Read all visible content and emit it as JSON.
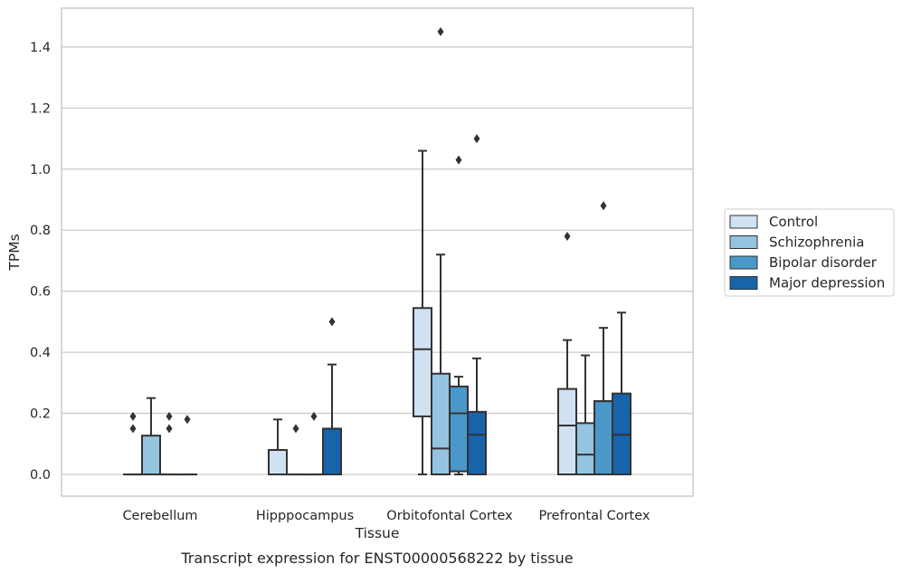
{
  "caption": "Transcript expression for ENST00000568222 by tissue",
  "chart_data": {
    "type": "box",
    "xlabel": "Tissue",
    "ylabel": "TPMs",
    "ylim": [
      -0.07,
      1.53
    ],
    "yticks": [
      0.0,
      0.2,
      0.4,
      0.6,
      0.8,
      1.0,
      1.2,
      1.4
    ],
    "ytick_labels": [
      "0.0",
      "0.2",
      "0.4",
      "0.6",
      "0.8",
      "1.0",
      "1.2",
      "1.4"
    ],
    "grid": "horizontal",
    "legend_position": "right",
    "categories": [
      "Cerebellum",
      "Hipppocampus",
      "Orbitofontal Cortex",
      "Prefrontal Cortex"
    ],
    "series": [
      {
        "name": "Control",
        "color": "#d0e1f2",
        "boxes": [
          {
            "q1": 0,
            "median": 0,
            "q3": 0,
            "whislo": 0,
            "whishi": 0,
            "fliers": [
              0.15,
              0.19
            ]
          },
          {
            "q1": 0,
            "median": 0,
            "q3": 0.08,
            "whislo": 0,
            "whishi": 0.18,
            "fliers": []
          },
          {
            "q1": 0.19,
            "median": 0.41,
            "q3": 0.545,
            "whislo": 0,
            "whishi": 1.06,
            "fliers": []
          },
          {
            "q1": 0,
            "median": 0.16,
            "q3": 0.28,
            "whislo": 0,
            "whishi": 0.44,
            "fliers": [
              0.78
            ]
          }
        ]
      },
      {
        "name": "Schizophrenia",
        "color": "#94c4df",
        "boxes": [
          {
            "q1": 0,
            "median": 0,
            "q3": 0.127,
            "whislo": 0,
            "whishi": 0.25,
            "fliers": []
          },
          {
            "q1": 0,
            "median": 0,
            "q3": 0,
            "whislo": 0,
            "whishi": 0,
            "fliers": [
              0.15
            ]
          },
          {
            "q1": 0,
            "median": 0.085,
            "q3": 0.33,
            "whislo": 0,
            "whishi": 0.72,
            "fliers": [
              1.45
            ]
          },
          {
            "q1": 0,
            "median": 0.065,
            "q3": 0.168,
            "whislo": 0,
            "whishi": 0.39,
            "fliers": []
          }
        ]
      },
      {
        "name": "Bipolar disorder",
        "color": "#4a98c9",
        "boxes": [
          {
            "q1": 0,
            "median": 0,
            "q3": 0,
            "whislo": 0,
            "whishi": 0,
            "fliers": [
              0.15,
              0.19
            ]
          },
          {
            "q1": 0,
            "median": 0,
            "q3": 0,
            "whislo": 0,
            "whishi": 0,
            "fliers": [
              0.19
            ]
          },
          {
            "q1": 0.01,
            "median": 0.2,
            "q3": 0.288,
            "whislo": 0,
            "whishi": 0.32,
            "fliers": [
              1.03
            ]
          },
          {
            "q1": 0,
            "median": 0.24,
            "q3": 0.24,
            "whislo": 0,
            "whishi": 0.48,
            "fliers": [
              0.88
            ]
          }
        ]
      },
      {
        "name": "Major depression",
        "color": "#1764ab",
        "boxes": [
          {
            "q1": 0,
            "median": 0,
            "q3": 0,
            "whislo": 0,
            "whishi": 0,
            "fliers": [
              0.18
            ]
          },
          {
            "q1": 0,
            "median": 0,
            "q3": 0.15,
            "whislo": 0,
            "whishi": 0.36,
            "fliers": [
              0.5
            ]
          },
          {
            "q1": 0,
            "median": 0.13,
            "q3": 0.205,
            "whislo": 0,
            "whishi": 0.38,
            "fliers": [
              1.1
            ]
          },
          {
            "q1": 0,
            "median": 0.13,
            "q3": 0.265,
            "whislo": 0,
            "whishi": 0.53,
            "fliers": []
          }
        ]
      }
    ]
  }
}
